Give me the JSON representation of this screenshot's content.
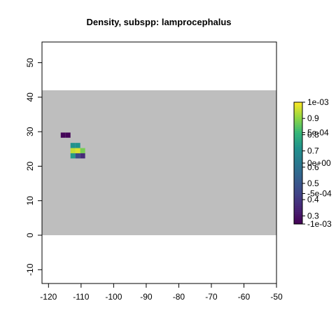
{
  "chart_data": {
    "type": "heatmap",
    "title": "Density, subspp: lamprocephalus",
    "xlabel": "",
    "ylabel": "",
    "xlim": [
      -122,
      -50
    ],
    "ylim": [
      -14,
      56
    ],
    "x_ticks": [
      {
        "value": -120,
        "label": "-120"
      },
      {
        "value": -110,
        "label": "-110"
      },
      {
        "value": -100,
        "label": "-100"
      },
      {
        "value": -90,
        "label": "-90"
      },
      {
        "value": -80,
        "label": "-80"
      },
      {
        "value": -70,
        "label": "-70"
      },
      {
        "value": -60,
        "label": "-60"
      },
      {
        "value": -50,
        "label": "-50"
      }
    ],
    "y_ticks": [
      {
        "value": -10,
        "label": "-10"
      },
      {
        "value": 0,
        "label": "0"
      },
      {
        "value": 10,
        "label": "10"
      },
      {
        "value": 20,
        "label": "20"
      },
      {
        "value": 30,
        "label": "30"
      },
      {
        "value": 40,
        "label": "40"
      },
      {
        "value": 50,
        "label": "50"
      }
    ],
    "background_region": {
      "x": [
        -122,
        -50
      ],
      "y": [
        0,
        42
      ],
      "color": "#bebebe"
    },
    "cell_size": 1.5,
    "cells": [
      {
        "x": -115.5,
        "y": 29,
        "value": 0.26
      },
      {
        "x": -114,
        "y": 29,
        "value": 0.26
      },
      {
        "x": -112.5,
        "y": 26,
        "value": 0.72
      },
      {
        "x": -111,
        "y": 26,
        "value": 0.72
      },
      {
        "x": -112.5,
        "y": 24.5,
        "value": 0.95
      },
      {
        "x": -111,
        "y": 24.5,
        "value": 0.97
      },
      {
        "x": -109.5,
        "y": 24.5,
        "value": 0.88
      },
      {
        "x": -112.5,
        "y": 23,
        "value": 0.74
      },
      {
        "x": -111,
        "y": 23,
        "value": 0.46
      },
      {
        "x": -109.5,
        "y": 23,
        "value": 0.36
      }
    ],
    "legend": {
      "placement": "right",
      "colormap": "viridis",
      "range": [
        0.25,
        1.0
      ],
      "ticks_a": [
        {
          "value": 0.3,
          "label": "0.3"
        },
        {
          "value": 0.4,
          "label": "0.4"
        },
        {
          "value": 0.5,
          "label": "0.5"
        },
        {
          "value": 0.6,
          "label": "0.6"
        },
        {
          "value": 0.7,
          "label": "0.7"
        },
        {
          "value": 0.8,
          "label": "0.8"
        },
        {
          "value": 0.9,
          "label": "0.9"
        }
      ],
      "ticks_b": [
        {
          "value": -0.001,
          "label": "-1e-03"
        },
        {
          "value": -0.0005,
          "label": "-5e-04"
        },
        {
          "value": 0,
          "label": "0e+00"
        },
        {
          "value": 0.0005,
          "label": "5e-04"
        },
        {
          "value": 0.001,
          "label": "1e-03"
        }
      ],
      "range_b": [
        -0.001,
        0.001
      ]
    }
  }
}
